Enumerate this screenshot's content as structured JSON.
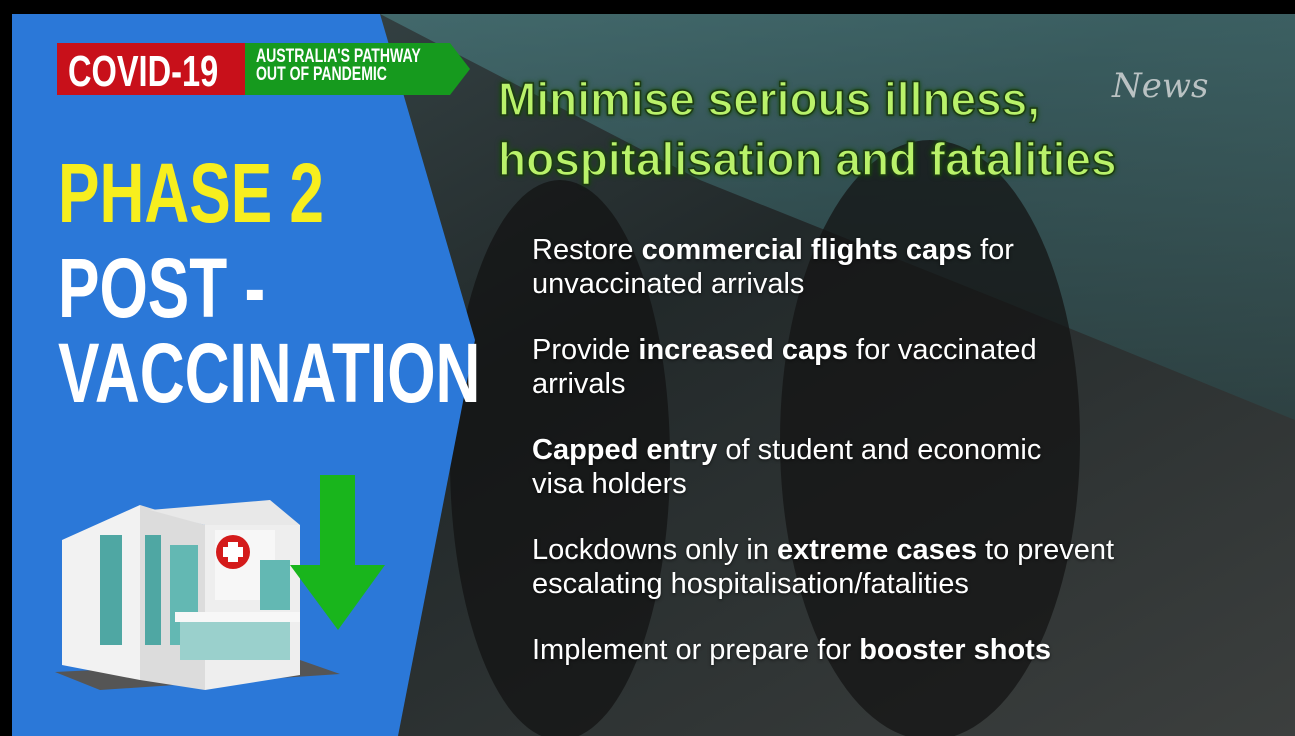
{
  "badge": {
    "label": "COVID-19",
    "tagline": [
      "AUSTRALIA'S PATHWAY",
      "OUT OF PANDEMIC"
    ]
  },
  "phase": "PHASE 2",
  "stage": [
    "POST -",
    "VACCINATION"
  ],
  "headline": [
    "Minimise serious illness,",
    "hospitalisation and fatalities"
  ],
  "watermark": "News",
  "bullets": [
    [
      [
        {
          "text": "Restore ",
          "bold": false
        },
        {
          "text": "commercial flights caps",
          "bold": true
        },
        {
          "text": " for",
          "bold": false
        }
      ],
      [
        {
          "text": "unvaccinated arrivals",
          "bold": false
        }
      ]
    ],
    [
      [
        {
          "text": "Provide ",
          "bold": false
        },
        {
          "text": "increased caps",
          "bold": true
        },
        {
          "text": " for vaccinated",
          "bold": false
        }
      ],
      [
        {
          "text": "arrivals",
          "bold": false
        }
      ]
    ],
    [
      [
        {
          "text": "Capped entry",
          "bold": true
        },
        {
          "text": " of student and economic",
          "bold": false
        }
      ],
      [
        {
          "text": "visa holders",
          "bold": false
        }
      ]
    ],
    [
      [
        {
          "text": "Lockdowns only in ",
          "bold": false
        },
        {
          "text": "extreme cases",
          "bold": true
        },
        {
          "text": " to prevent",
          "bold": false
        }
      ],
      [
        {
          "text": "escalating hospitalisation/fatalities",
          "bold": false
        }
      ]
    ],
    [
      [
        {
          "text": "Implement or prepare for ",
          "bold": false
        },
        {
          "text": "booster shots",
          "bold": true
        }
      ]
    ]
  ]
}
